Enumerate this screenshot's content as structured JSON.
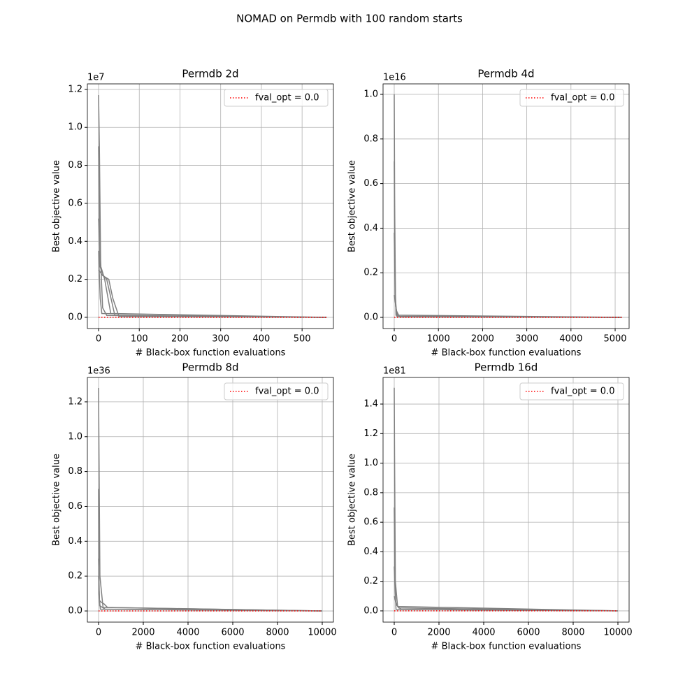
{
  "title": "NOMAD on Permdb with 100 random starts",
  "chart_data": [
    {
      "type": "line",
      "title": "Permdb 2d",
      "xlabel": "# Black-box function evaluations",
      "ylabel": "Best objective value",
      "y_offset": "1e7",
      "xlim": [
        -27.5,
        577
      ],
      "ylim": [
        -0.059,
        1.229
      ],
      "xticks": [
        0,
        100,
        200,
        300,
        400,
        500
      ],
      "yticks": [
        {
          "value": 0,
          "label": "0.0"
        },
        0.2,
        0.4,
        0.6,
        0.8,
        {
          "value": 1,
          "label": "1.0"
        },
        1.2
      ],
      "grid": true,
      "legend": "upper right",
      "series": [
        {
          "color": "#808080",
          "x": [
            0,
            2,
            5,
            10,
            20,
            560
          ],
          "values": [
            1.17,
            0.9,
            0.3,
            0.05,
            0.01,
            0
          ]
        },
        {
          "color": "#808080",
          "x": [
            0,
            5,
            8,
            15,
            30,
            560
          ],
          "values": [
            0.52,
            0.27,
            0.25,
            0.2,
            0.02,
            0
          ]
        },
        {
          "color": "#808080",
          "x": [
            0,
            3,
            12,
            20,
            40,
            560
          ],
          "values": [
            0.9,
            0.27,
            0.22,
            0.2,
            0.01,
            0
          ]
        },
        {
          "color": "#808080",
          "x": [
            0,
            10,
            25,
            35,
            50,
            560
          ],
          "values": [
            0.25,
            0.22,
            0.2,
            0.1,
            0.005,
            0
          ]
        },
        {
          "color": "#808080",
          "x": [
            0,
            4,
            8,
            500
          ],
          "values": [
            0.35,
            0.1,
            0.02,
            0
          ]
        },
        {
          "name": "fval_opt = 0.0",
          "color": "#ff0000",
          "linestyle": "dotted",
          "x": [
            0,
            560
          ],
          "values": [
            0,
            0
          ]
        }
      ]
    },
    {
      "type": "line",
      "title": "Permdb 4d",
      "xlabel": "# Black-box function evaluations",
      "ylabel": "Best objective value",
      "y_offset": "1e16",
      "xlim": [
        -253,
        5316
      ],
      "ylim": [
        -0.05,
        1.047
      ],
      "xticks": [
        0,
        1000,
        2000,
        3000,
        4000,
        5000
      ],
      "yticks": [
        {
          "value": 0,
          "label": "0.0"
        },
        0.2,
        0.4,
        0.6,
        0.8,
        {
          "value": 1,
          "label": "1.0"
        }
      ],
      "grid": true,
      "legend": "upper right",
      "series": [
        {
          "color": "#808080",
          "x": [
            0,
            10,
            30,
            80,
            5150
          ],
          "values": [
            1.0,
            0.5,
            0.05,
            0.005,
            0
          ]
        },
        {
          "color": "#808080",
          "x": [
            0,
            15,
            40,
            5150
          ],
          "values": [
            0.7,
            0.2,
            0.01,
            0
          ]
        },
        {
          "color": "#808080",
          "x": [
            0,
            20,
            60,
            5150
          ],
          "values": [
            0.38,
            0.1,
            0.005,
            0
          ]
        },
        {
          "color": "#808080",
          "x": [
            0,
            50,
            120,
            5150
          ],
          "values": [
            0.1,
            0.03,
            0.002,
            0
          ]
        },
        {
          "name": "fval_opt = 0.0",
          "color": "#ff0000",
          "linestyle": "dotted",
          "x": [
            0,
            5150
          ],
          "values": [
            0,
            0
          ]
        }
      ]
    },
    {
      "type": "line",
      "title": "Permdb 8d",
      "xlabel": "# Black-box function evaluations",
      "ylabel": "Best objective value",
      "y_offset": "1e36",
      "xlim": [
        -500,
        10500
      ],
      "ylim": [
        -0.064,
        1.34
      ],
      "xticks": [
        0,
        2000,
        4000,
        6000,
        8000,
        10000
      ],
      "yticks": [
        {
          "value": 0,
          "label": "0.0"
        },
        0.2,
        0.4,
        0.6,
        0.8,
        {
          "value": 1,
          "label": "1.0"
        },
        1.2
      ],
      "grid": true,
      "legend": "upper right",
      "series": [
        {
          "color": "#808080",
          "x": [
            0,
            20,
            60,
            200,
            10000
          ],
          "values": [
            1.28,
            0.9,
            0.2,
            0.02,
            0
          ]
        },
        {
          "color": "#808080",
          "x": [
            0,
            40,
            120,
            250,
            400,
            10000
          ],
          "values": [
            0.3,
            0.06,
            0.05,
            0.04,
            0.02,
            0
          ]
        },
        {
          "color": "#808080",
          "x": [
            0,
            10,
            80,
            10000
          ],
          "values": [
            0.7,
            0.1,
            0.01,
            0
          ]
        },
        {
          "color": "#808080",
          "x": [
            0,
            50,
            300,
            10000
          ],
          "values": [
            0.2,
            0.03,
            0.01,
            0
          ]
        },
        {
          "name": "fval_opt = 0.0",
          "color": "#ff0000",
          "linestyle": "dotted",
          "x": [
            0,
            10000
          ],
          "values": [
            0,
            0
          ]
        }
      ]
    },
    {
      "type": "line",
      "title": "Permdb 16d",
      "xlabel": "# Black-box function evaluations",
      "ylabel": "Best objective value",
      "y_offset": "1e81",
      "xlim": [
        -500,
        10500
      ],
      "ylim": [
        -0.076,
        1.58
      ],
      "xticks": [
        0,
        2000,
        4000,
        6000,
        8000,
        10000
      ],
      "yticks": [
        {
          "value": 0,
          "label": "0.0"
        },
        0.2,
        0.4,
        0.6,
        0.8,
        {
          "value": 1,
          "label": "1.0"
        },
        1.2,
        1.4
      ],
      "grid": true,
      "legend": "upper right",
      "series": [
        {
          "color": "#808080",
          "x": [
            0,
            15,
            50,
            150,
            10000
          ],
          "values": [
            1.51,
            1.05,
            0.2,
            0.03,
            0
          ]
        },
        {
          "color": "#808080",
          "x": [
            0,
            30,
            80,
            10000
          ],
          "values": [
            0.7,
            0.2,
            0.01,
            0
          ]
        },
        {
          "color": "#808080",
          "x": [
            0,
            60,
            200,
            10000
          ],
          "values": [
            0.3,
            0.06,
            0.02,
            0
          ]
        },
        {
          "color": "#808080",
          "x": [
            0,
            100,
            300,
            10000
          ],
          "values": [
            0.1,
            0.04,
            0.01,
            0
          ]
        },
        {
          "name": "fval_opt = 0.0",
          "color": "#ff0000",
          "linestyle": "dotted",
          "x": [
            0,
            10000
          ],
          "values": [
            0,
            0
          ]
        }
      ]
    }
  ]
}
